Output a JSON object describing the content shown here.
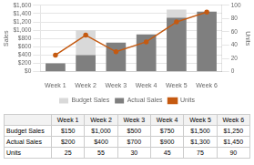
{
  "chart_data": {
    "type": "bar",
    "categories": [
      "Week 1",
      "Week 2",
      "Week 3",
      "Week 4",
      "Week 5",
      "Week 6"
    ],
    "series": [
      {
        "name": "Budget Sales",
        "type": "bar",
        "color": "#d9d9d9",
        "values": [
          150,
          1000,
          500,
          750,
          1500,
          1250
        ],
        "value_labels": [
          "$150",
          "$1,000",
          "$500",
          "$750",
          "$1,500",
          "$1,250"
        ]
      },
      {
        "name": "Actual Sales",
        "type": "bar",
        "color": "#7f7f7f",
        "values": [
          200,
          400,
          700,
          900,
          1300,
          1450
        ],
        "value_labels": [
          "$200",
          "$400",
          "$700",
          "$900",
          "$1,300",
          "$1,450"
        ]
      },
      {
        "name": "Units",
        "type": "line",
        "axis": "y2",
        "color": "#c55a11",
        "marker": "circle",
        "values": [
          25,
          55,
          30,
          45,
          75,
          90
        ]
      }
    ],
    "ylabel": "Sales",
    "y2label": "Units",
    "ylim": [
      0,
      1600
    ],
    "yticks": [
      {
        "value": 0,
        "label": "$0"
      },
      {
        "value": 200,
        "label": "$200"
      },
      {
        "value": 400,
        "label": "$400"
      },
      {
        "value": 600,
        "label": "$600"
      },
      {
        "value": 800,
        "label": "$800"
      },
      {
        "value": 1000,
        "label": "$1,000"
      },
      {
        "value": 1200,
        "label": "$1,200"
      },
      {
        "value": 1400,
        "label": "$1,400"
      },
      {
        "value": 1600,
        "label": "$1,600"
      }
    ],
    "y2lim": [
      0,
      100
    ],
    "y2ticks": [
      0,
      20,
      40,
      60,
      80,
      100
    ],
    "grid": true,
    "legend": "bottom"
  }
}
